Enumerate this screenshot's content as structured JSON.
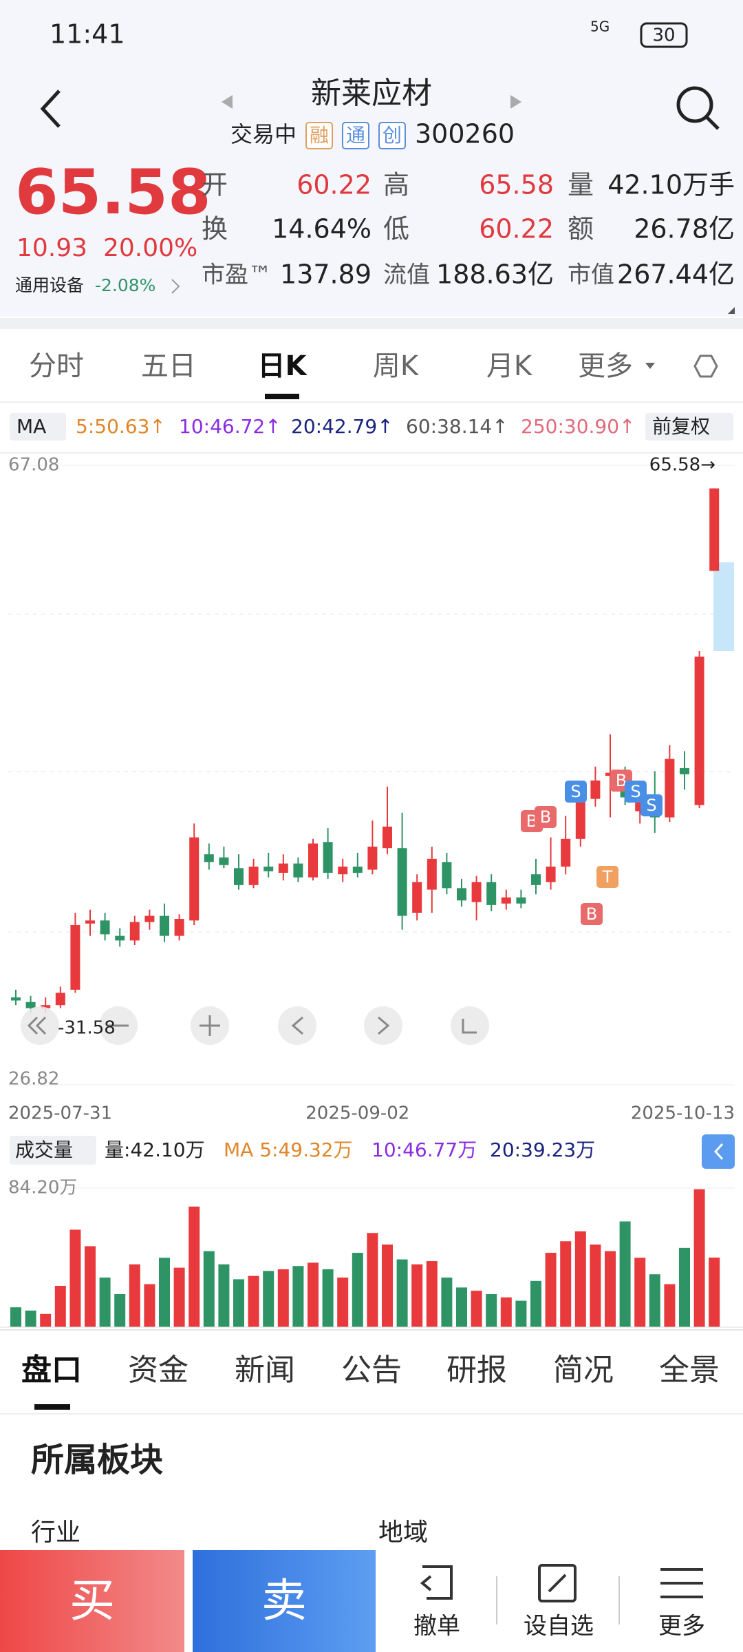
{
  "status_bar": {
    "time": "11:41",
    "network": "5G",
    "battery": "30"
  },
  "header": {
    "title": "新莱应材",
    "status": "交易中",
    "badges": [
      "融",
      "通",
      "创"
    ],
    "code": "300260"
  },
  "quote": {
    "price": "65.58",
    "change": "10.93",
    "change_pct": "20.00%",
    "sector": "通用设备",
    "sector_pct": "-2.08%",
    "stats": [
      [
        "开",
        "60.22"
      ],
      [
        "高",
        "65.58"
      ],
      [
        "量",
        "42.10万手"
      ],
      [
        "换",
        "14.64%"
      ],
      [
        "低",
        "60.22"
      ],
      [
        "额",
        "26.78亿"
      ],
      [
        "市盈™",
        "137.89"
      ],
      [
        "流值",
        "188.63亿"
      ],
      [
        "市值",
        "267.44亿"
      ]
    ]
  },
  "tabs": [
    "分时",
    "五日",
    "日K",
    "周K",
    "月K",
    "更多"
  ],
  "ma_bar": {
    "selector": "MA",
    "items": [
      "5:50.63↑",
      "10:46.72↑",
      "20:42.79↑",
      "60:38.14↑",
      "250:30.90↑"
    ],
    "adjust": "前复权"
  },
  "chart_data": {
    "type": "candlestick",
    "up_color": "#e8393d",
    "down_color": "#2e9466",
    "categories": [
      "2025-07-31",
      null,
      null,
      null,
      null,
      null,
      null,
      null,
      null,
      null,
      null,
      null,
      null,
      null,
      null,
      null,
      null,
      null,
      null,
      null,
      null,
      null,
      null,
      "2025-09-02",
      null,
      null,
      null,
      null,
      null,
      null,
      null,
      null,
      null,
      null,
      null,
      null,
      null,
      null,
      null,
      null,
      null,
      null,
      null,
      null,
      null,
      null,
      null,
      "2025-10-13"
    ],
    "open": [
      32.5,
      32.2,
      31.8,
      32.0,
      33,
      37.3,
      37.5,
      36.5,
      36.2,
      37.4,
      37.8,
      36.5,
      37.5,
      41.8,
      41.6,
      40.9,
      39.8,
      41,
      40.6,
      41.2,
      40.3,
      42.6,
      40.5,
      41.0,
      40.8,
      42.2,
      42.2,
      38,
      39.5,
      41.3,
      39.6,
      38.7,
      40,
      38.6,
      39.0,
      40.5,
      40,
      41,
      42.8,
      45.4,
      46.9,
      46,
      44.6,
      45.0,
      44.2,
      47.4,
      45.0,
      60.22
    ],
    "high": [
      33,
      32.6,
      32.5,
      33.2,
      38,
      38.2,
      38,
      37,
      37.8,
      38.2,
      38.6,
      37.9,
      43.8,
      42.5,
      42.3,
      41.8,
      41.5,
      41.9,
      41.8,
      41.6,
      42.8,
      43.5,
      41.5,
      41.9,
      44,
      46.2,
      44.5,
      40.5,
      42.3,
      41.9,
      40.2,
      40.4,
      40.5,
      39.5,
      39.5,
      41.5,
      42.9,
      44.3,
      46,
      47.5,
      49.6,
      47.5,
      46.2,
      47.2,
      48.9,
      48.5,
      55.0,
      65.58
    ],
    "low": [
      32,
      31.5,
      31.5,
      31.8,
      32.8,
      36.5,
      36.2,
      35.8,
      35.9,
      36.9,
      36.1,
      36.2,
      37.2,
      40.8,
      40.9,
      39.5,
      39.6,
      40.3,
      40.1,
      40.0,
      40.1,
      40.2,
      40.0,
      40.3,
      40.5,
      41.8,
      36.9,
      37.5,
      38,
      39.2,
      38.4,
      37.5,
      38.1,
      38.2,
      38.3,
      39.2,
      39.5,
      40.5,
      42.3,
      44.9,
      44.2,
      45.0,
      43.8,
      43.2,
      43.9,
      46,
      44.8,
      60.22
    ],
    "close": [
      32.3,
      31.8,
      32.0,
      32.8,
      37.2,
      37.5,
      36.6,
      36.2,
      37.4,
      37.8,
      36.5,
      37.6,
      42.9,
      41.3,
      41.1,
      39.8,
      41.0,
      40.7,
      41.2,
      40.3,
      42.5,
      40.6,
      41.0,
      40.6,
      42.3,
      43.6,
      37.8,
      40,
      41.5,
      39.6,
      38.8,
      40,
      38.5,
      39.0,
      38.6,
      39.8,
      41.0,
      42.8,
      45.4,
      46.6,
      47.1,
      45.5,
      45.4,
      44.2,
      48.0,
      47.0,
      54.65,
      65.58
    ],
    "ylim": [
      26.82,
      67.08
    ],
    "yticks": [
      67.08,
      26.82
    ],
    "last_price_label": "65.58→",
    "zoom_label": "-31.58",
    "signals": [
      "B",
      "B",
      "S",
      "B",
      "S",
      "S",
      "T",
      "B"
    ],
    "volume": {
      "label": "成交量",
      "summary": "量:42.10万",
      "ma_items": [
        "MA 5:49.32万",
        "10:46.77万",
        "20:39.23万"
      ],
      "values": [
        12,
        10,
        8,
        25,
        59,
        49,
        30,
        20,
        38,
        26,
        42,
        36,
        73,
        46,
        38,
        29,
        31,
        34,
        35,
        37,
        39,
        35,
        30,
        45,
        57,
        50,
        41,
        38,
        40,
        30,
        24,
        22,
        20,
        18,
        16,
        28,
        45,
        52,
        58,
        50,
        46,
        64,
        42,
        32,
        26,
        48,
        83.5,
        42.1
      ],
      "ylim": [
        0,
        84.2
      ],
      "yticks": [
        {
          "value": 84.2,
          "label": "84.20万"
        }
      ]
    }
  },
  "detail_tabs": [
    "盘口",
    "资金",
    "新闻",
    "公告",
    "研报",
    "简况",
    "全景"
  ],
  "section": {
    "title": "所属板块",
    "left": "行业",
    "right": "地域"
  },
  "actions": {
    "buy": "买",
    "sell": "卖",
    "items": [
      "撤单",
      "设自选",
      "更多"
    ]
  }
}
